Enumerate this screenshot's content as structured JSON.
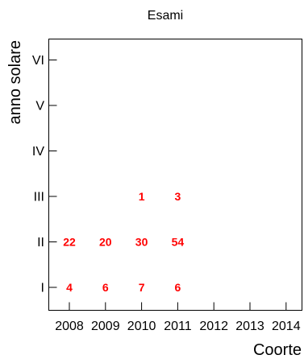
{
  "chart_data": {
    "type": "table",
    "title": "Esami",
    "xlabel": "Coorte",
    "ylabel": "anno solare",
    "x_categories": [
      "2008",
      "2009",
      "2010",
      "2011",
      "2012",
      "2013",
      "2014"
    ],
    "y_categories": [
      "I",
      "II",
      "III",
      "IV",
      "V",
      "VI"
    ],
    "value_color": "#ff0000",
    "cells": [
      {
        "x": "2008",
        "y": "I",
        "value": "4"
      },
      {
        "x": "2009",
        "y": "I",
        "value": "6"
      },
      {
        "x": "2010",
        "y": "I",
        "value": "7"
      },
      {
        "x": "2011",
        "y": "I",
        "value": "6"
      },
      {
        "x": "2008",
        "y": "II",
        "value": "22"
      },
      {
        "x": "2009",
        "y": "II",
        "value": "20"
      },
      {
        "x": "2010",
        "y": "II",
        "value": "30"
      },
      {
        "x": "2011",
        "y": "II",
        "value": "54"
      },
      {
        "x": "2010",
        "y": "III",
        "value": "1"
      },
      {
        "x": "2011",
        "y": "III",
        "value": "3"
      }
    ],
    "grid": false,
    "legend": "none"
  }
}
